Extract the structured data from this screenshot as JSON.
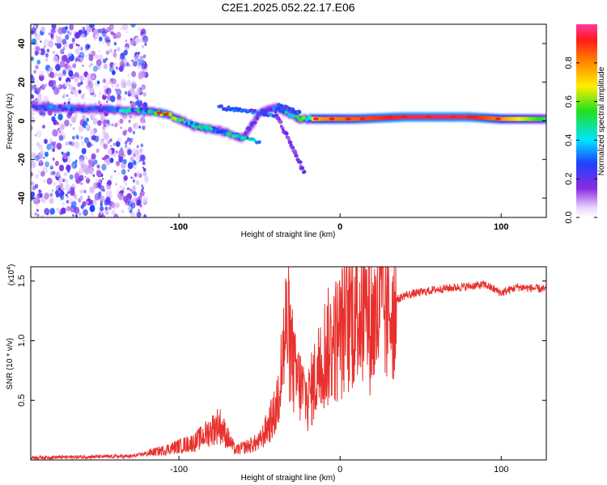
{
  "title": "C2E1.2025.052.22.17.E06",
  "spectrogram": {
    "type": "heatmap",
    "xlabel": "Height of straight line (km)",
    "ylabel": "Frequency (Hz)",
    "xlim": [
      -192,
      128
    ],
    "ylim": [
      -50,
      50
    ],
    "xticks": [
      -100,
      0,
      100
    ],
    "yticks": [
      -40,
      -20,
      0,
      20,
      40
    ],
    "colorbar": {
      "label": "Normalized spectral amplitude",
      "ticks": [
        "0.0",
        "0.2",
        "0.4",
        "0.6",
        "0.8"
      ],
      "range": [
        0,
        1
      ],
      "colormap": "rainbow (white-violet-blue-cyan-green-yellow-orange-red-pink)"
    },
    "main_band": [
      {
        "x": -190,
        "freq": 7,
        "amp": 0.3
      },
      {
        "x": -150,
        "freq": 6,
        "amp": 0.3
      },
      {
        "x": -120,
        "freq": 5,
        "amp": 0.45
      },
      {
        "x": -110,
        "freq": 4,
        "amp": 0.75
      },
      {
        "x": -100,
        "freq": 1,
        "amp": 0.55
      },
      {
        "x": -90,
        "freq": -3,
        "amp": 0.4
      },
      {
        "x": -75,
        "freq": -5,
        "amp": 0.35
      },
      {
        "x": -60,
        "freq": -9,
        "amp": 0.3
      },
      {
        "x": -50,
        "freq": 4,
        "amp": 0.25
      },
      {
        "x": -40,
        "freq": 7,
        "amp": 0.3
      },
      {
        "x": -25,
        "freq": 1,
        "amp": 0.55
      },
      {
        "x": -10,
        "freq": 1,
        "amp": 0.8
      },
      {
        "x": 10,
        "freq": 1,
        "amp": 0.85
      },
      {
        "x": 40,
        "freq": 2,
        "amp": 0.95
      },
      {
        "x": 80,
        "freq": 2,
        "amp": 0.95
      },
      {
        "x": 100,
        "freq": 1,
        "amp": 0.8
      },
      {
        "x": 128,
        "freq": 1,
        "amp": 0.5
      }
    ]
  },
  "snr": {
    "type": "line",
    "xlabel": "Height of straight line (km)",
    "ylabel": "SNR (10 * v/v)",
    "multiplier": "(x10",
    "multiplier_exp": "4",
    "xlim": [
      -192,
      128
    ],
    "ylim": [
      0,
      1.62
    ],
    "xticks": [
      -100,
      0,
      100
    ],
    "yticks": [
      "0.5",
      "1.0",
      "1.5"
    ],
    "color": "#e8302c",
    "envelope": [
      {
        "x": -192,
        "y": 0.02
      },
      {
        "x": -130,
        "y": 0.03
      },
      {
        "x": -110,
        "y": 0.08
      },
      {
        "x": -90,
        "y": 0.15
      },
      {
        "x": -75,
        "y": 0.3
      },
      {
        "x": -65,
        "y": 0.08
      },
      {
        "x": -50,
        "y": 0.15
      },
      {
        "x": -40,
        "y": 0.4
      },
      {
        "x": -33,
        "y": 1.15
      },
      {
        "x": -28,
        "y": 0.7
      },
      {
        "x": -20,
        "y": 0.5
      },
      {
        "x": -10,
        "y": 0.9
      },
      {
        "x": 0,
        "y": 1.05
      },
      {
        "x": 10,
        "y": 1.3
      },
      {
        "x": 20,
        "y": 1.15
      },
      {
        "x": 30,
        "y": 1.3
      },
      {
        "x": 40,
        "y": 1.38
      },
      {
        "x": 60,
        "y": 1.43
      },
      {
        "x": 90,
        "y": 1.47
      },
      {
        "x": 100,
        "y": 1.4
      },
      {
        "x": 110,
        "y": 1.45
      },
      {
        "x": 128,
        "y": 1.43
      }
    ]
  },
  "colors": {
    "axis": "#000000",
    "line": "#e8302c"
  }
}
